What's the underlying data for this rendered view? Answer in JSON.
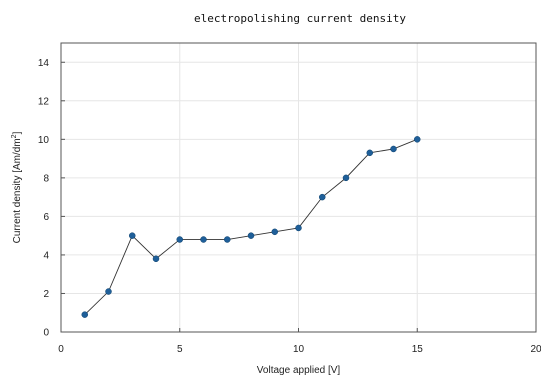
{
  "chart_data": {
    "type": "line",
    "title": "electropolishing current density",
    "xlabel": "Voltage applied [V]",
    "ylabel_main": "Current density [Am/dm",
    "ylabel_sup": "2",
    "ylabel_end": "]",
    "xlim": [
      0,
      20
    ],
    "ylim": [
      0,
      15
    ],
    "xticks": [
      0,
      5,
      10,
      15,
      20
    ],
    "yticks": [
      0,
      2,
      4,
      6,
      8,
      10,
      12,
      14
    ],
    "grid": true,
    "marker_color": "#1f5f99",
    "line_color": "#333333",
    "series": [
      {
        "x": [
          1,
          2,
          3,
          4,
          5,
          6,
          7,
          8,
          9,
          10,
          11,
          12,
          13,
          14,
          15
        ],
        "y": [
          0.9,
          2.1,
          5.0,
          3.8,
          4.8,
          4.8,
          4.8,
          5.0,
          5.2,
          5.4,
          7.0,
          8.0,
          9.3,
          9.5,
          10.0
        ]
      }
    ]
  }
}
